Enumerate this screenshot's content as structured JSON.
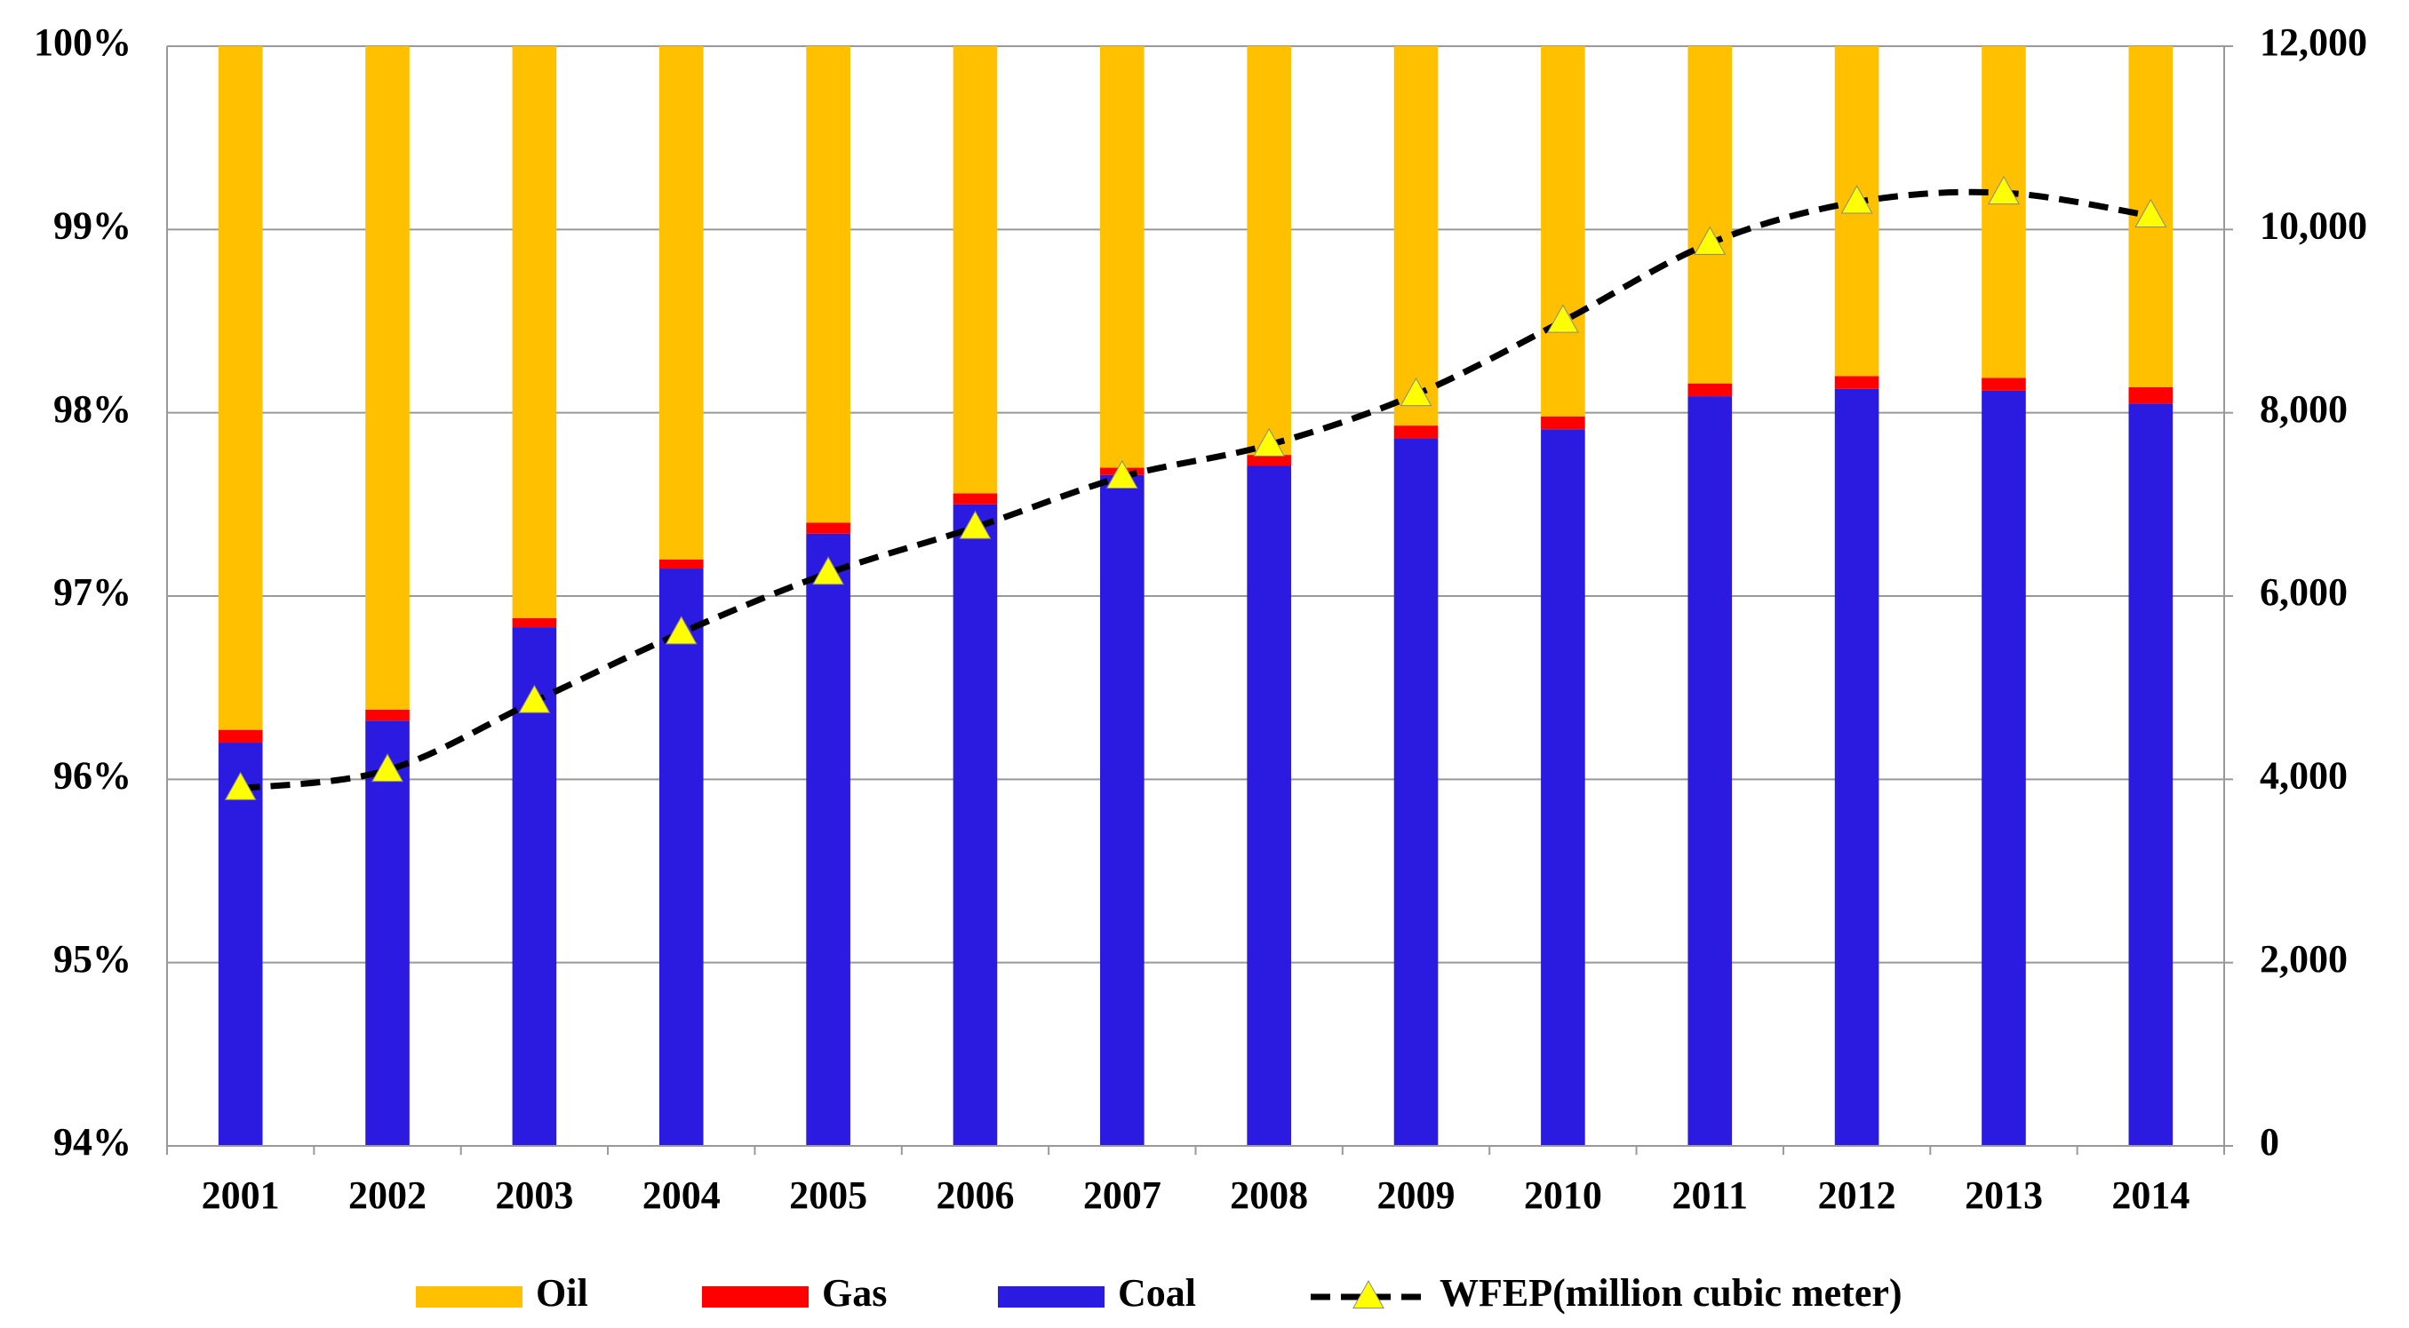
{
  "chart_data": {
    "type": "bar",
    "categories": [
      "2001",
      "2002",
      "2003",
      "2004",
      "2005",
      "2006",
      "2007",
      "2008",
      "2009",
      "2010",
      "2011",
      "2012",
      "2013",
      "2014"
    ],
    "series": [
      {
        "name": "Coal",
        "color": "#2b1ae0",
        "values": [
          96.2,
          96.32,
          96.83,
          97.15,
          97.34,
          97.5,
          97.66,
          97.71,
          97.86,
          97.91,
          98.09,
          98.13,
          98.12,
          98.05
        ]
      },
      {
        "name": "Gas",
        "color": "#ff0000",
        "values": [
          0.07,
          0.06,
          0.05,
          0.05,
          0.06,
          0.06,
          0.04,
          0.06,
          0.07,
          0.07,
          0.07,
          0.07,
          0.07,
          0.09
        ]
      },
      {
        "name": "Oil",
        "color": "#ffc000",
        "values": [
          3.73,
          3.62,
          3.12,
          2.8,
          2.6,
          2.44,
          2.3,
          2.23,
          2.07,
          2.02,
          1.84,
          1.8,
          1.81,
          1.86
        ]
      },
      {
        "name": "WFEP(million cubic meter)",
        "type": "line",
        "axis": "y2",
        "color": "#000000",
        "marker_color": "#ffff00",
        "values": [
          3900,
          4100,
          4850,
          5600,
          6250,
          6750,
          7300,
          7650,
          8200,
          9000,
          9850,
          10300,
          10400,
          10150
        ]
      }
    ],
    "stacked": true,
    "ylim": [
      94,
      100
    ],
    "yticks": [
      {
        "value": 94,
        "label": "94%"
      },
      {
        "value": 95,
        "label": "95%"
      },
      {
        "value": 96,
        "label": "96%"
      },
      {
        "value": 97,
        "label": "97%"
      },
      {
        "value": 98,
        "label": "98%"
      },
      {
        "value": 99,
        "label": "99%"
      },
      {
        "value": 100,
        "label": "100%"
      }
    ],
    "y2lim": [
      0,
      12000
    ],
    "y2ticks": [
      0,
      {
        "value": 2000,
        "label": "2,000"
      },
      {
        "value": 4000,
        "label": "4,000"
      },
      {
        "value": 6000,
        "label": "6,000"
      },
      {
        "value": 8000,
        "label": "8,000"
      },
      {
        "value": 10000,
        "label": "10,000"
      },
      {
        "value": 12000,
        "label": "12,000"
      }
    ],
    "grid": true,
    "legend": "bottom"
  }
}
